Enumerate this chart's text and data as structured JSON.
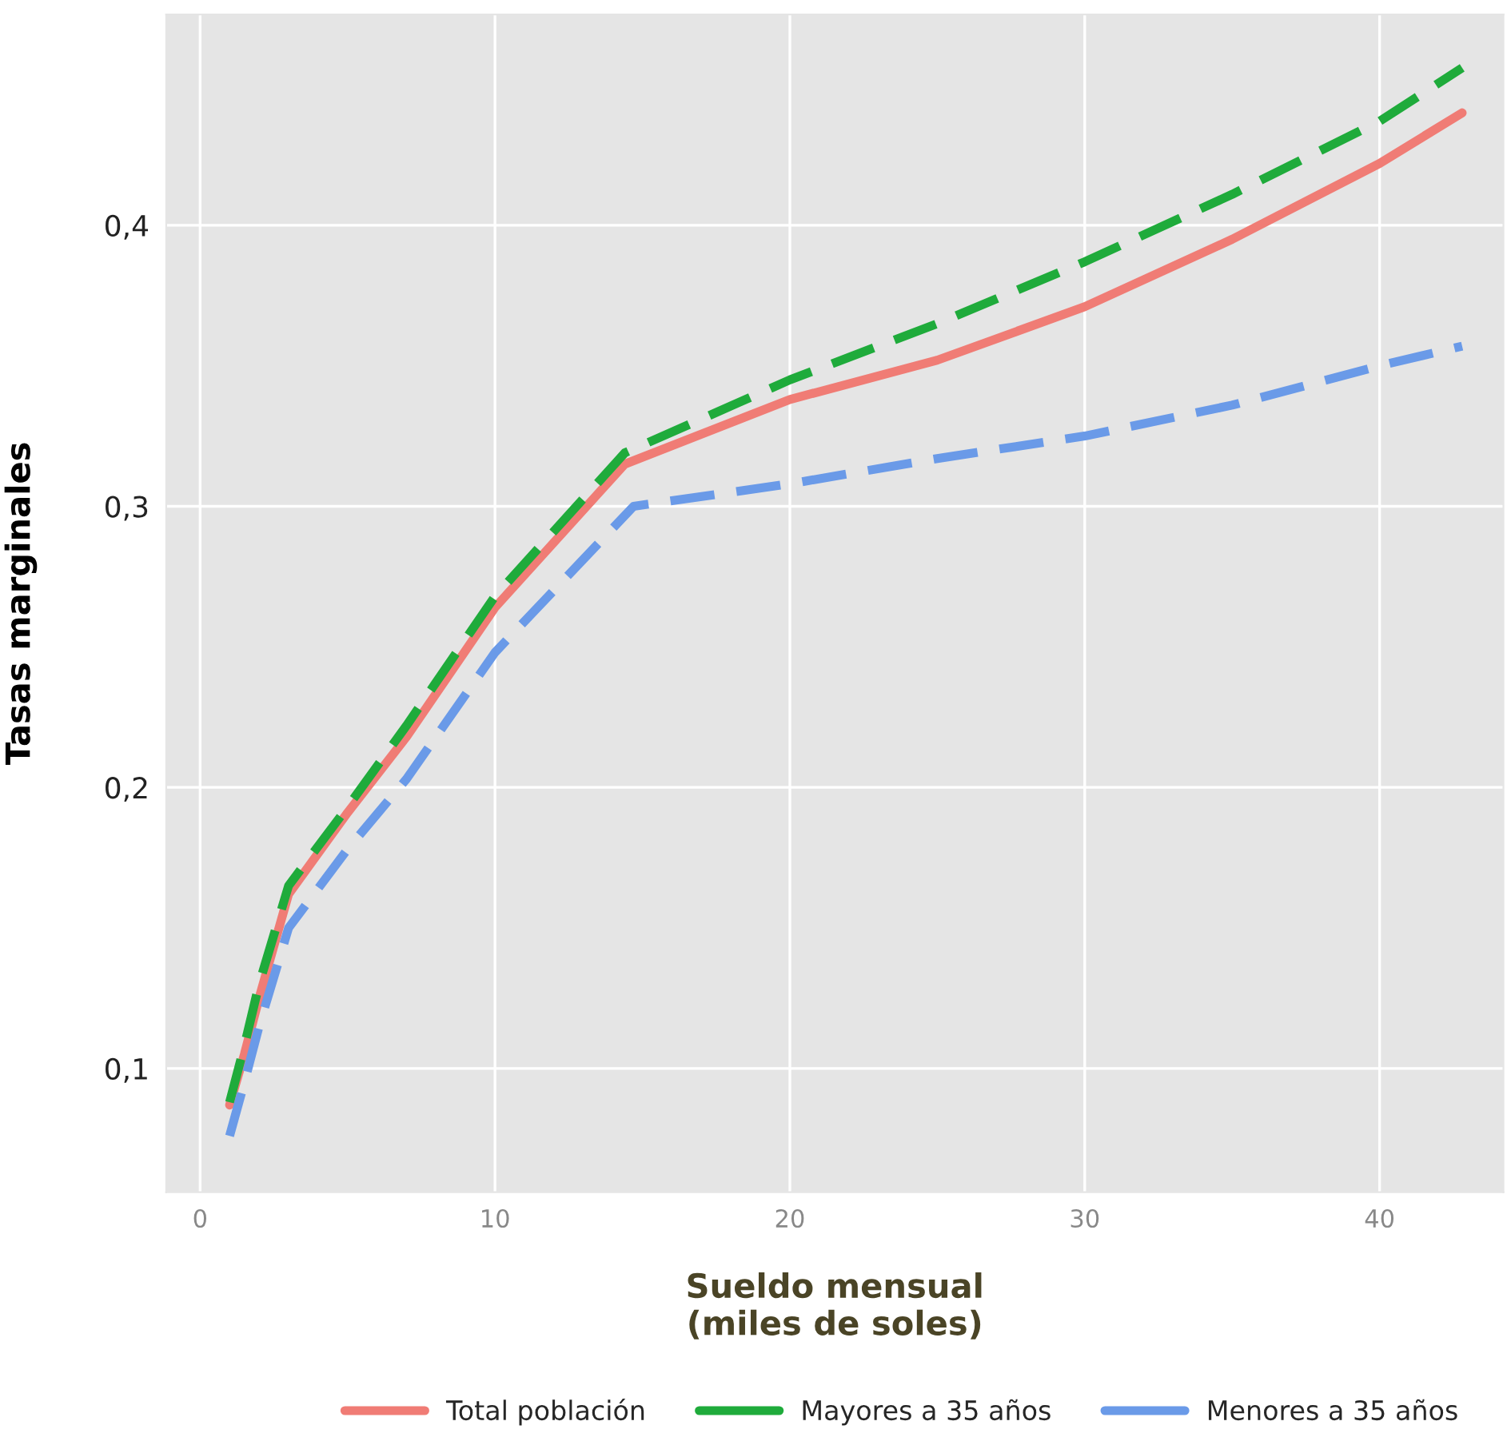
{
  "chart_data": {
    "type": "line",
    "xlabel": "Sueldo mensual\n(miles de soles)",
    "ylabel": "Tasas marginales",
    "xlim": [
      -1.15,
      44.2
    ],
    "ylim": [
      0.056,
      0.475
    ],
    "xticks": [
      0,
      10,
      20,
      30,
      40
    ],
    "yticks": [
      {
        "value": 0.1,
        "label": "0,1"
      },
      {
        "value": 0.2,
        "label": "0,2"
      },
      {
        "value": 0.3,
        "label": "0,3"
      },
      {
        "value": 0.4,
        "label": "0,4"
      }
    ],
    "grid": true,
    "legend": "bottom",
    "series": [
      {
        "name": "Total población",
        "color": "#f07c75",
        "line_style": "solid",
        "x": [
          1,
          1.5,
          2,
          3,
          5,
          7,
          10,
          14.4,
          20,
          25,
          30,
          35,
          40,
          42.8
        ],
        "values": [
          0.087,
          0.105,
          0.125,
          0.162,
          0.191,
          0.218,
          0.264,
          0.315,
          0.338,
          0.352,
          0.371,
          0.395,
          0.422,
          0.44
        ]
      },
      {
        "name": "Mayores a 35 años",
        "color": "#1fab3b",
        "line_style": "dashed",
        "x": [
          1,
          1.5,
          2,
          3,
          5,
          7,
          10,
          14.4,
          20,
          25,
          30,
          35,
          40,
          42.8
        ],
        "values": [
          0.088,
          0.108,
          0.13,
          0.165,
          0.193,
          0.222,
          0.268,
          0.319,
          0.345,
          0.365,
          0.387,
          0.411,
          0.437,
          0.456
        ]
      },
      {
        "name": "Menores a 35 años",
        "color": "#6a9ae8",
        "line_style": "dashed",
        "x": [
          1,
          1.5,
          2,
          3,
          5,
          7,
          10,
          14.7,
          20,
          25,
          30,
          35,
          40,
          42.8
        ],
        "values": [
          0.076,
          0.095,
          0.115,
          0.15,
          0.178,
          0.203,
          0.248,
          0.3,
          0.308,
          0.317,
          0.325,
          0.336,
          0.35,
          0.357
        ]
      }
    ]
  }
}
